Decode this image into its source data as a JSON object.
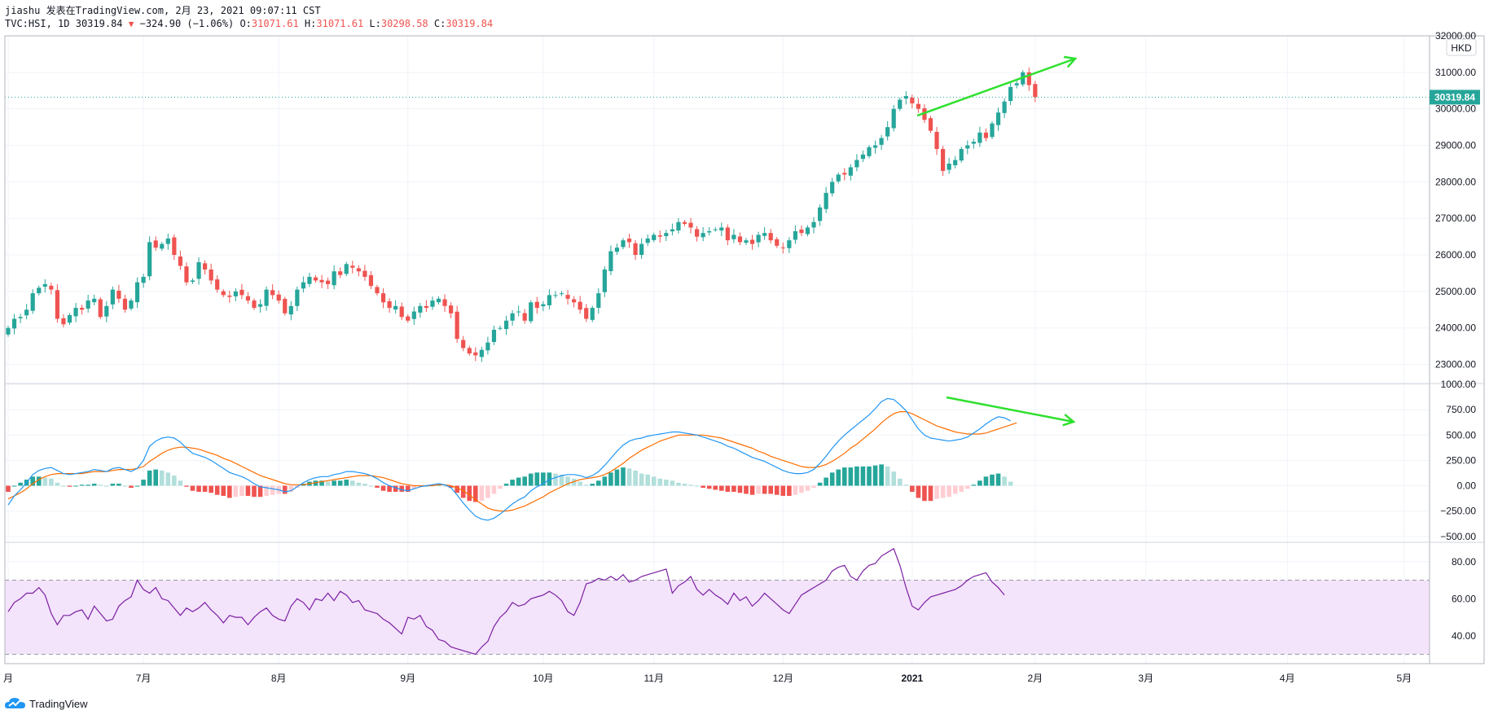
{
  "header": {
    "line1": "jiashu 发表在TradingView.com, 2月 23, 2021 09:07:11 CST",
    "symbol": "TVC:HSI, 1D",
    "last": "30319.84",
    "change": "−324.90 (−1.06%)",
    "o_label": "O:",
    "o_value": "31071.61",
    "h_label": "H:",
    "h_value": "31071.61",
    "l_label": "L:",
    "l_value": "30298.58",
    "c_label": "C:",
    "c_value": "30319.84"
  },
  "currency": "HKD",
  "last_price_label": "30319.84",
  "footer": {
    "brand": "TradingView"
  },
  "colors": {
    "up": "#26a69a",
    "down": "#ef5350",
    "macd": "#2196f3",
    "signal": "#ff6d00",
    "rsi": "#7b1fa2",
    "arrow": "#2ee02e"
  },
  "chart_data": [
    {
      "type": "candlestick",
      "title": "",
      "ylim": [
        22500,
        32000
      ],
      "yticks": [
        "23000.00",
        "24000.00",
        "25000.00",
        "26000.00",
        "27000.00",
        "28000.00",
        "29000.00",
        "30000.00",
        "31000.00",
        "32000.00"
      ],
      "ytick_values": [
        23000,
        24000,
        25000,
        26000,
        27000,
        28000,
        29000,
        30000,
        31000,
        32000
      ],
      "xticks": [
        "月",
        "7月",
        "8月",
        "9月",
        "10月",
        "11月",
        "12月",
        "2021",
        "2月",
        "3月",
        "4月",
        "5月"
      ],
      "xtick_idx": [
        0,
        22,
        44,
        65,
        87,
        105,
        126,
        147,
        167,
        185,
        208,
        227
      ],
      "last_price": 30319.84,
      "closes": [
        24000,
        24250,
        24300,
        24500,
        24950,
        25100,
        25200,
        25050,
        24250,
        24100,
        24350,
        24550,
        24500,
        24750,
        24800,
        24300,
        24600,
        25050,
        24800,
        24500,
        24750,
        25250,
        25400,
        26350,
        26200,
        26300,
        26450,
        26000,
        25700,
        25250,
        25300,
        25800,
        25600,
        25300,
        25050,
        24900,
        24850,
        25000,
        24900,
        24750,
        24550,
        24650,
        25050,
        24900,
        24750,
        24400,
        24600,
        25050,
        25250,
        25400,
        25300,
        25250,
        25200,
        25550,
        25450,
        25750,
        25650,
        25550,
        25400,
        25150,
        24950,
        24700,
        24550,
        24600,
        24300,
        24200,
        24450,
        24600,
        24550,
        24750,
        24800,
        24600,
        24400,
        23700,
        23450,
        23300,
        23250,
        23400,
        23600,
        23950,
        24000,
        24200,
        24400,
        24450,
        24200,
        24700,
        24550,
        24650,
        24900,
        24900,
        24950,
        24800,
        24700,
        24500,
        24250,
        24550,
        24950,
        25600,
        26100,
        26200,
        26400,
        26350,
        26000,
        26300,
        26450,
        26550,
        26500,
        26600,
        26700,
        26900,
        26850,
        26750,
        26500,
        26600,
        26650,
        26700,
        26750,
        26400,
        26550,
        26350,
        26400,
        26300,
        26550,
        26600,
        26400,
        26250,
        26200,
        26400,
        26650,
        26600,
        26750,
        26900,
        27300,
        27700,
        28000,
        28200,
        28200,
        28400,
        28600,
        28750,
        28950,
        29000,
        29200,
        29500,
        30000,
        30250,
        30350,
        30150,
        30000,
        29700,
        29400,
        28900,
        28300,
        28500,
        28600,
        28900,
        29000,
        29100,
        29350,
        29200,
        29600,
        29900,
        30200,
        30600,
        30700,
        31000,
        30650,
        30319.84
      ],
      "bars_note": "daily candles"
    },
    {
      "type": "line",
      "title": "",
      "series": [
        {
          "role": "macd",
          "values": [
            -190,
            -100,
            -40,
            30,
            110,
            150,
            170,
            180,
            150,
            120,
            110,
            120,
            130,
            140,
            160,
            150,
            140,
            170,
            180,
            160,
            140,
            170,
            250,
            390,
            440,
            470,
            480,
            470,
            430,
            370,
            320,
            300,
            280,
            250,
            210,
            170,
            130,
            110,
            90,
            60,
            20,
            -10,
            -20,
            -30,
            -40,
            -60,
            -50,
            -10,
            30,
            60,
            80,
            90,
            90,
            110,
            120,
            140,
            140,
            130,
            120,
            100,
            70,
            30,
            0,
            -20,
            -40,
            -50,
            -30,
            -10,
            0,
            10,
            20,
            10,
            -20,
            -90,
            -170,
            -240,
            -300,
            -330,
            -340,
            -320,
            -280,
            -230,
            -180,
            -140,
            -110,
            -50,
            -10,
            20,
            60,
            80,
            100,
            110,
            110,
            100,
            80,
            100,
            140,
            200,
            270,
            340,
            400,
            440,
            460,
            470,
            490,
            500,
            510,
            520,
            530,
            530,
            520,
            510,
            500,
            480,
            460,
            440,
            420,
            390,
            370,
            340,
            310,
            280,
            260,
            240,
            210,
            180,
            150,
            130,
            120,
            120,
            130,
            160,
            220,
            290,
            370,
            440,
            500,
            550,
            600,
            650,
            700,
            760,
            830,
            860,
            850,
            800,
            740,
            650,
            560,
            500,
            470,
            460,
            450,
            440,
            450,
            460,
            480,
            520,
            560,
            610,
            650,
            680,
            670,
            640
          ]
        },
        {
          "role": "signal",
          "values": [
            -130,
            -100,
            -70,
            -30,
            20,
            60,
            90,
            110,
            120,
            120,
            120,
            120,
            120,
            130,
            140,
            140,
            140,
            150,
            160,
            160,
            160,
            170,
            190,
            240,
            280,
            320,
            350,
            370,
            380,
            380,
            370,
            360,
            340,
            320,
            300,
            270,
            250,
            220,
            190,
            160,
            130,
            100,
            80,
            60,
            40,
            20,
            10,
            10,
            10,
            20,
            30,
            40,
            50,
            60,
            70,
            80,
            90,
            100,
            100,
            100,
            90,
            80,
            60,
            40,
            20,
            10,
            0,
            0,
            0,
            0,
            10,
            10,
            0,
            -20,
            -50,
            -90,
            -140,
            -180,
            -220,
            -240,
            -250,
            -250,
            -240,
            -220,
            -200,
            -170,
            -140,
            -110,
            -70,
            -40,
            -10,
            20,
            40,
            60,
            70,
            80,
            90,
            110,
            140,
            180,
            220,
            270,
            310,
            350,
            380,
            410,
            440,
            460,
            480,
            500,
            500,
            500,
            500,
            500,
            490,
            480,
            470,
            450,
            430,
            410,
            390,
            370,
            340,
            320,
            290,
            270,
            250,
            230,
            210,
            190,
            180,
            180,
            190,
            210,
            240,
            280,
            320,
            370,
            410,
            460,
            510,
            560,
            620,
            670,
            710,
            730,
            730,
            710,
            680,
            650,
            620,
            590,
            570,
            550,
            530,
            520,
            510,
            510,
            510,
            520,
            540,
            560,
            580,
            600,
            620
          ]
        }
      ],
      "ylim": [
        -550,
        1000
      ],
      "yticks": [
        "1000.00",
        "750.00",
        "500.00",
        "250.00",
        "0.00",
        "−250.00",
        "−500.00"
      ],
      "ytick_values": [
        1000,
        750,
        500,
        250,
        0,
        -250,
        -500
      ]
    },
    {
      "type": "line",
      "title": "",
      "series": [
        {
          "role": "rsi",
          "values": [
            53,
            58,
            60,
            63,
            63,
            66,
            62,
            52,
            46,
            51,
            51,
            53,
            54,
            49,
            56,
            52,
            48,
            49,
            56,
            59,
            61,
            70,
            65,
            63,
            66,
            60,
            59,
            55,
            51,
            55,
            53,
            55,
            58,
            54,
            51,
            47,
            51,
            50,
            50,
            46,
            50,
            53,
            55,
            51,
            49,
            48,
            56,
            60,
            58,
            54,
            60,
            59,
            63,
            59,
            64,
            62,
            58,
            59,
            54,
            53,
            52,
            49,
            47,
            44,
            41,
            50,
            49,
            51,
            45,
            43,
            38,
            37,
            34,
            33,
            32,
            31,
            30,
            34,
            37,
            45,
            50,
            53,
            58,
            56,
            57,
            60,
            61,
            62,
            64,
            62,
            59,
            53,
            51,
            58,
            68,
            69,
            71,
            70,
            72,
            70,
            73,
            69,
            70,
            72,
            73,
            74,
            75,
            76,
            63,
            67,
            69,
            72,
            65,
            62,
            65,
            62,
            60,
            57,
            63,
            59,
            61,
            56,
            59,
            63,
            60,
            57,
            54,
            52,
            57,
            62,
            64,
            66,
            68,
            70,
            75,
            77,
            78,
            72,
            70,
            75,
            78,
            79,
            83,
            85,
            87,
            78,
            66,
            56,
            54,
            58,
            61,
            62,
            63,
            64,
            65,
            67,
            70,
            72,
            73,
            74,
            69,
            66,
            62
          ]
        }
      ],
      "ylim": [
        25,
        90
      ],
      "yticks": [
        "80.00",
        "60.00",
        "40.00"
      ],
      "ytick_values": [
        80,
        60,
        40
      ],
      "band": [
        30,
        70
      ]
    }
  ]
}
